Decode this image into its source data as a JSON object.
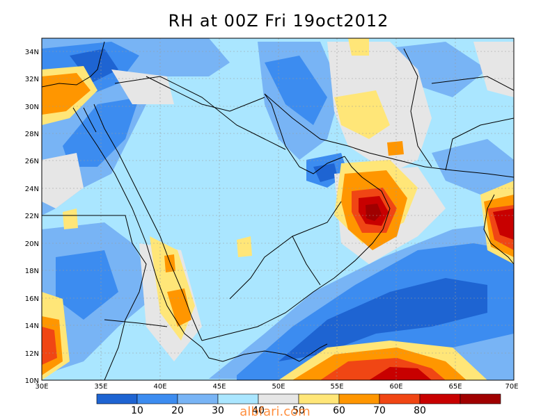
{
  "title": "RH at 00Z Fri 19oct2012",
  "map": {
    "lat_labels": [
      "34N",
      "32N",
      "30N",
      "28N",
      "26N",
      "24N",
      "22N",
      "20N",
      "18N",
      "16N",
      "14N",
      "12N",
      "10N"
    ],
    "lon_labels": [
      "30E",
      "35E",
      "40E",
      "45E",
      "50E",
      "55E",
      "60E",
      "65E",
      "70E"
    ],
    "lon_range": [
      30,
      70
    ],
    "lat_range": [
      10,
      35
    ]
  },
  "colorbar": {
    "labels": [
      "10",
      "20",
      "30",
      "40",
      "50",
      "60",
      "70",
      "80"
    ],
    "colors": [
      "#1e64d2",
      "#3c8cf0",
      "#78b4f5",
      "#aae6ff",
      "#e6e6e6",
      "#ffe678",
      "#ff9600",
      "#f04614",
      "#c80000",
      "#a00000"
    ]
  },
  "colors": {
    "c10": "#1e64d2",
    "c20": "#3c8cf0",
    "c30": "#78b4f5",
    "c40": "#aae6ff",
    "c50": "#e6e6e6",
    "c60": "#ffe678",
    "c70": "#ff9600",
    "c80": "#f04614",
    "c90": "#c80000",
    "c100": "#a00000"
  },
  "watermark": "albfari.com"
}
